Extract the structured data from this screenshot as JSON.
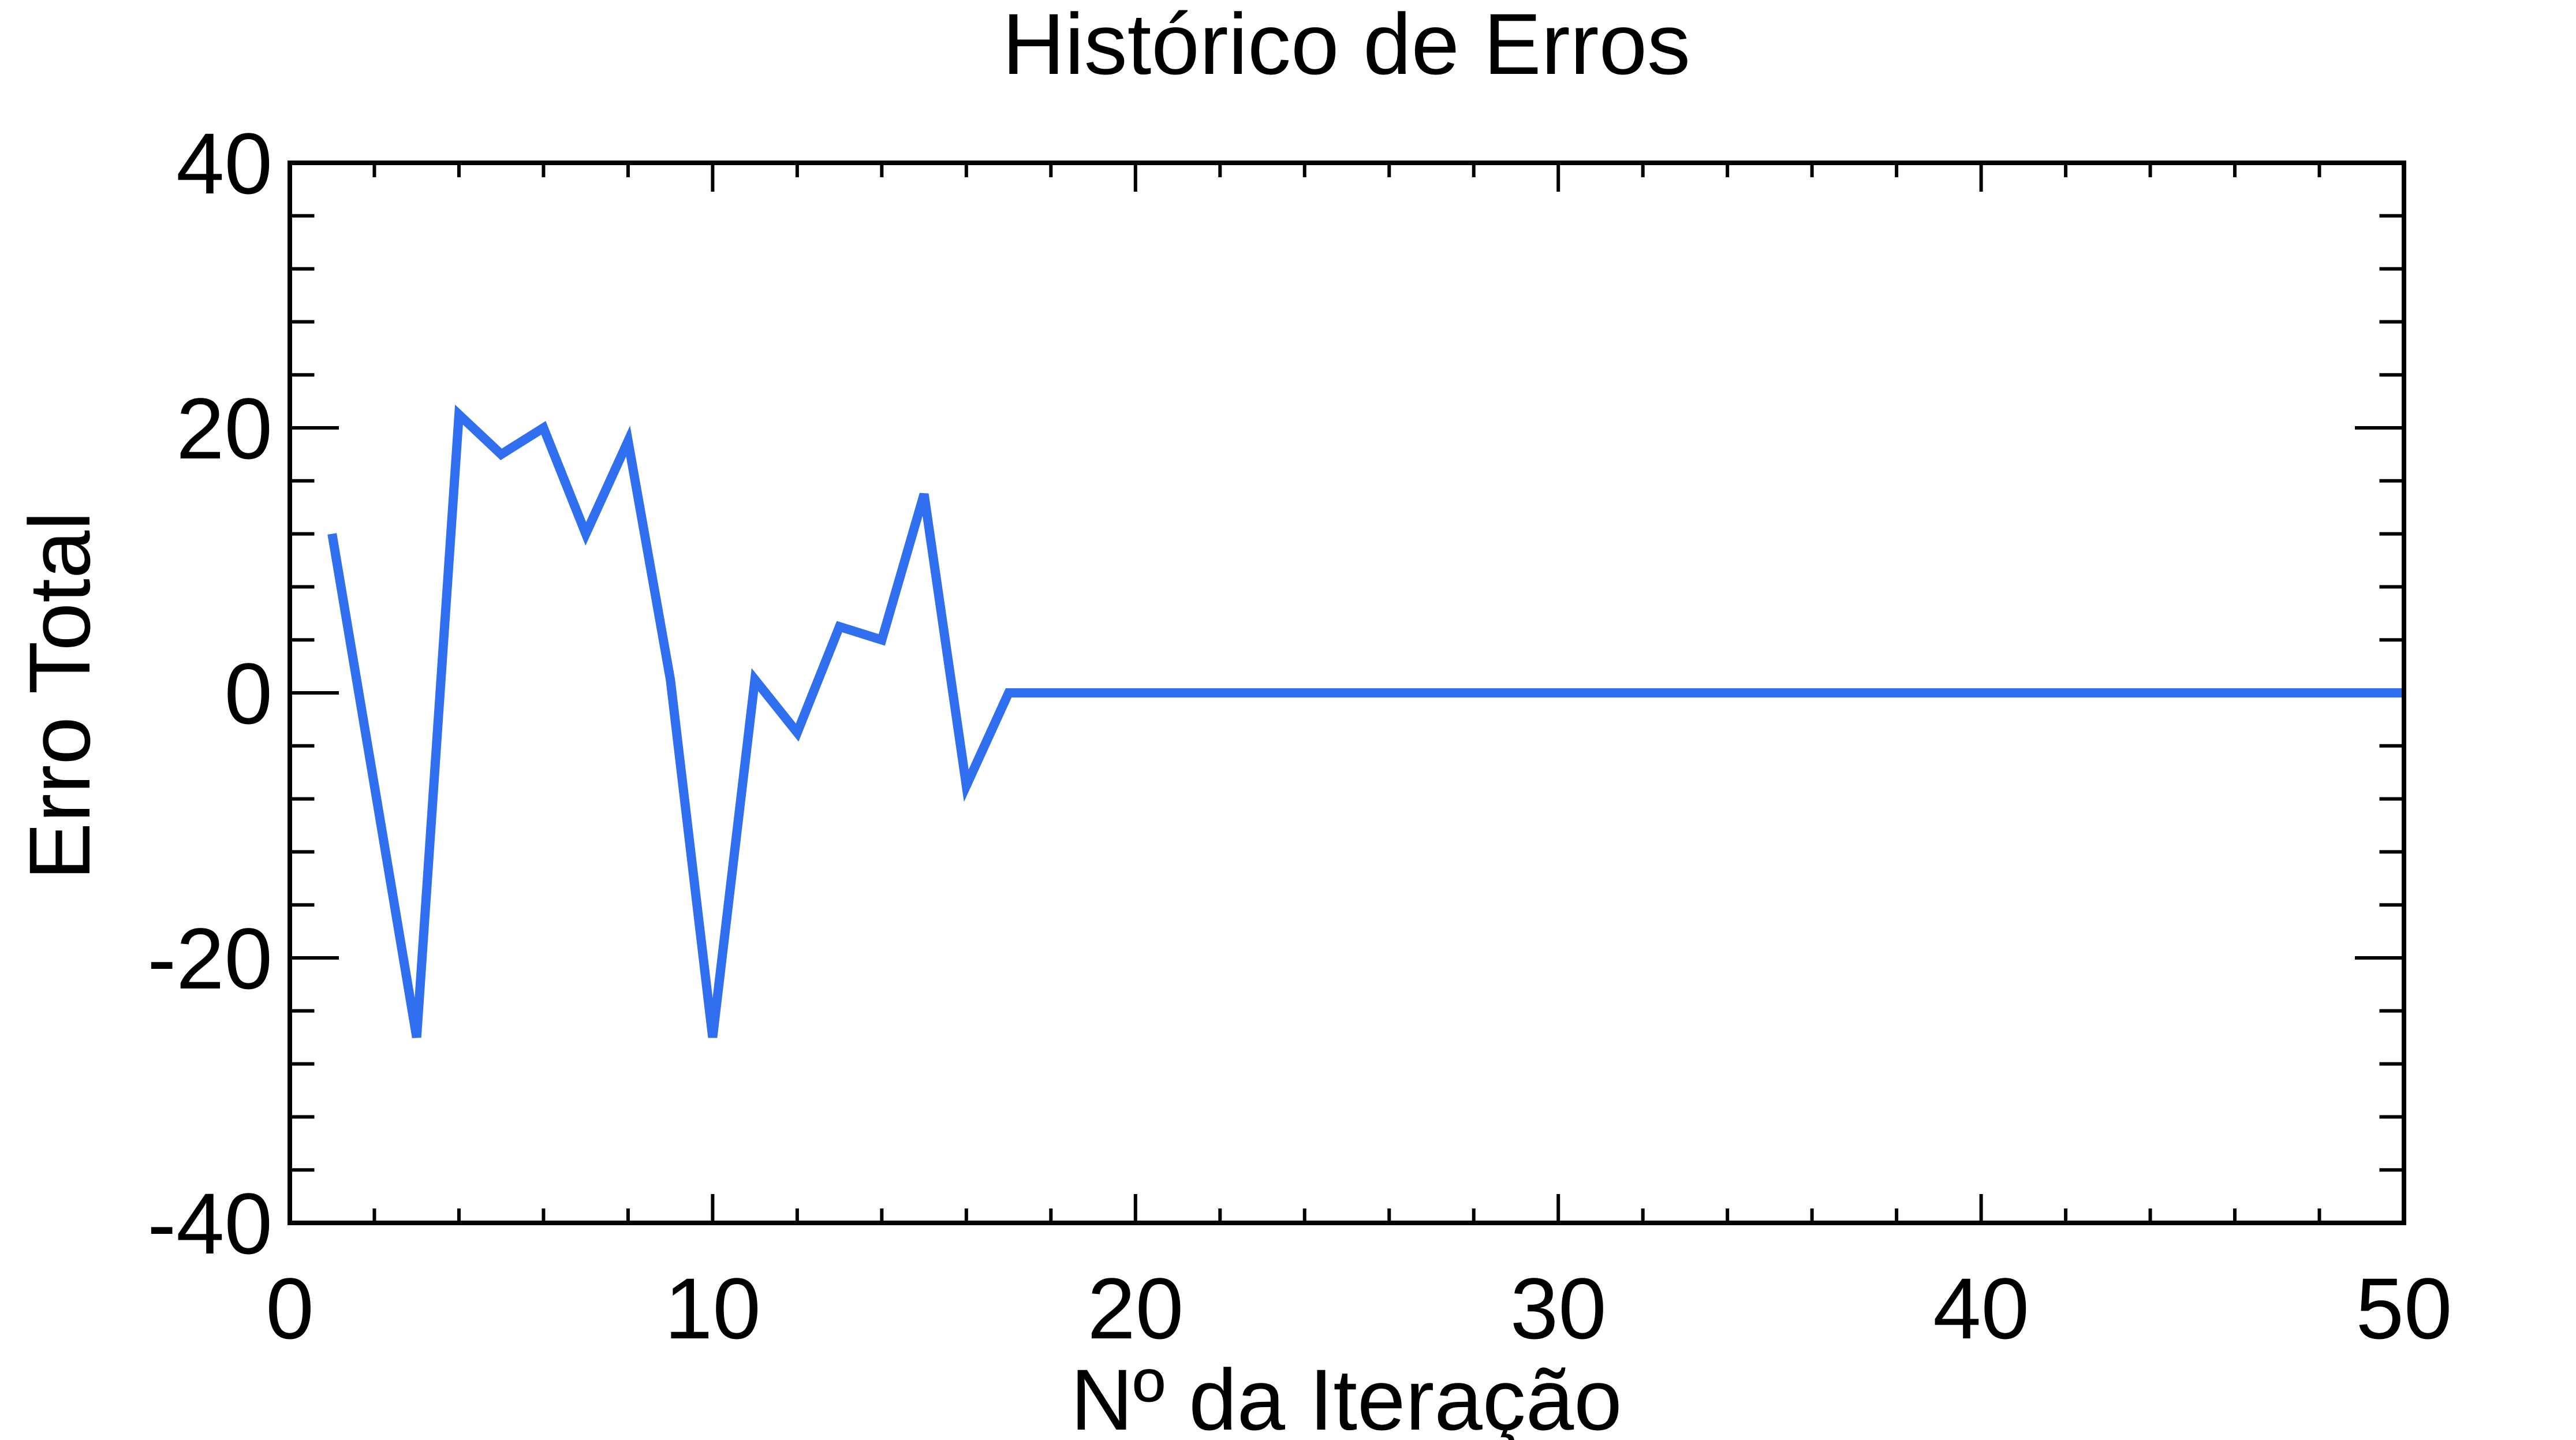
{
  "chart_data": {
    "type": "line",
    "title": "Histórico de Erros",
    "xlabel": "Nº da Iteração",
    "ylabel": "Erro Total",
    "xlim": [
      0,
      50
    ],
    "ylim": [
      -40,
      40
    ],
    "x_ticks": [
      0,
      10,
      20,
      30,
      40,
      50
    ],
    "x_tick_labels": [
      "0",
      "10",
      "20",
      "30",
      "40",
      "50"
    ],
    "y_ticks": [
      -40,
      -20,
      0,
      20,
      40
    ],
    "y_tick_labels": [
      "-40",
      "-20",
      "0",
      "20",
      "40"
    ],
    "x_minor_step": 2,
    "y_minor_step": 4,
    "grid": false,
    "legend": "none",
    "series": [
      {
        "color": "#2f6ff0",
        "x": [
          1,
          2,
          3,
          4,
          5,
          6,
          7,
          8,
          9,
          10,
          11,
          12,
          13,
          14,
          15,
          16,
          17,
          18,
          19,
          20,
          21,
          22,
          23,
          24,
          25,
          26,
          27,
          28,
          29,
          30,
          31,
          32,
          33,
          34,
          35,
          36,
          37,
          38,
          39,
          40,
          41,
          42,
          43,
          44,
          45,
          46,
          47,
          48,
          49,
          50
        ],
        "y": [
          12,
          -7,
          -26,
          21,
          18,
          20,
          12,
          19,
          1,
          -26,
          1,
          -3,
          5,
          4,
          15,
          -7,
          0,
          0,
          0,
          0,
          0,
          0,
          0,
          0,
          0,
          0,
          0,
          0,
          0,
          0,
          0,
          0,
          0,
          0,
          0,
          0,
          0,
          0,
          0,
          0,
          0,
          0,
          0,
          0,
          0,
          0,
          0,
          0,
          0,
          0
        ]
      }
    ]
  }
}
